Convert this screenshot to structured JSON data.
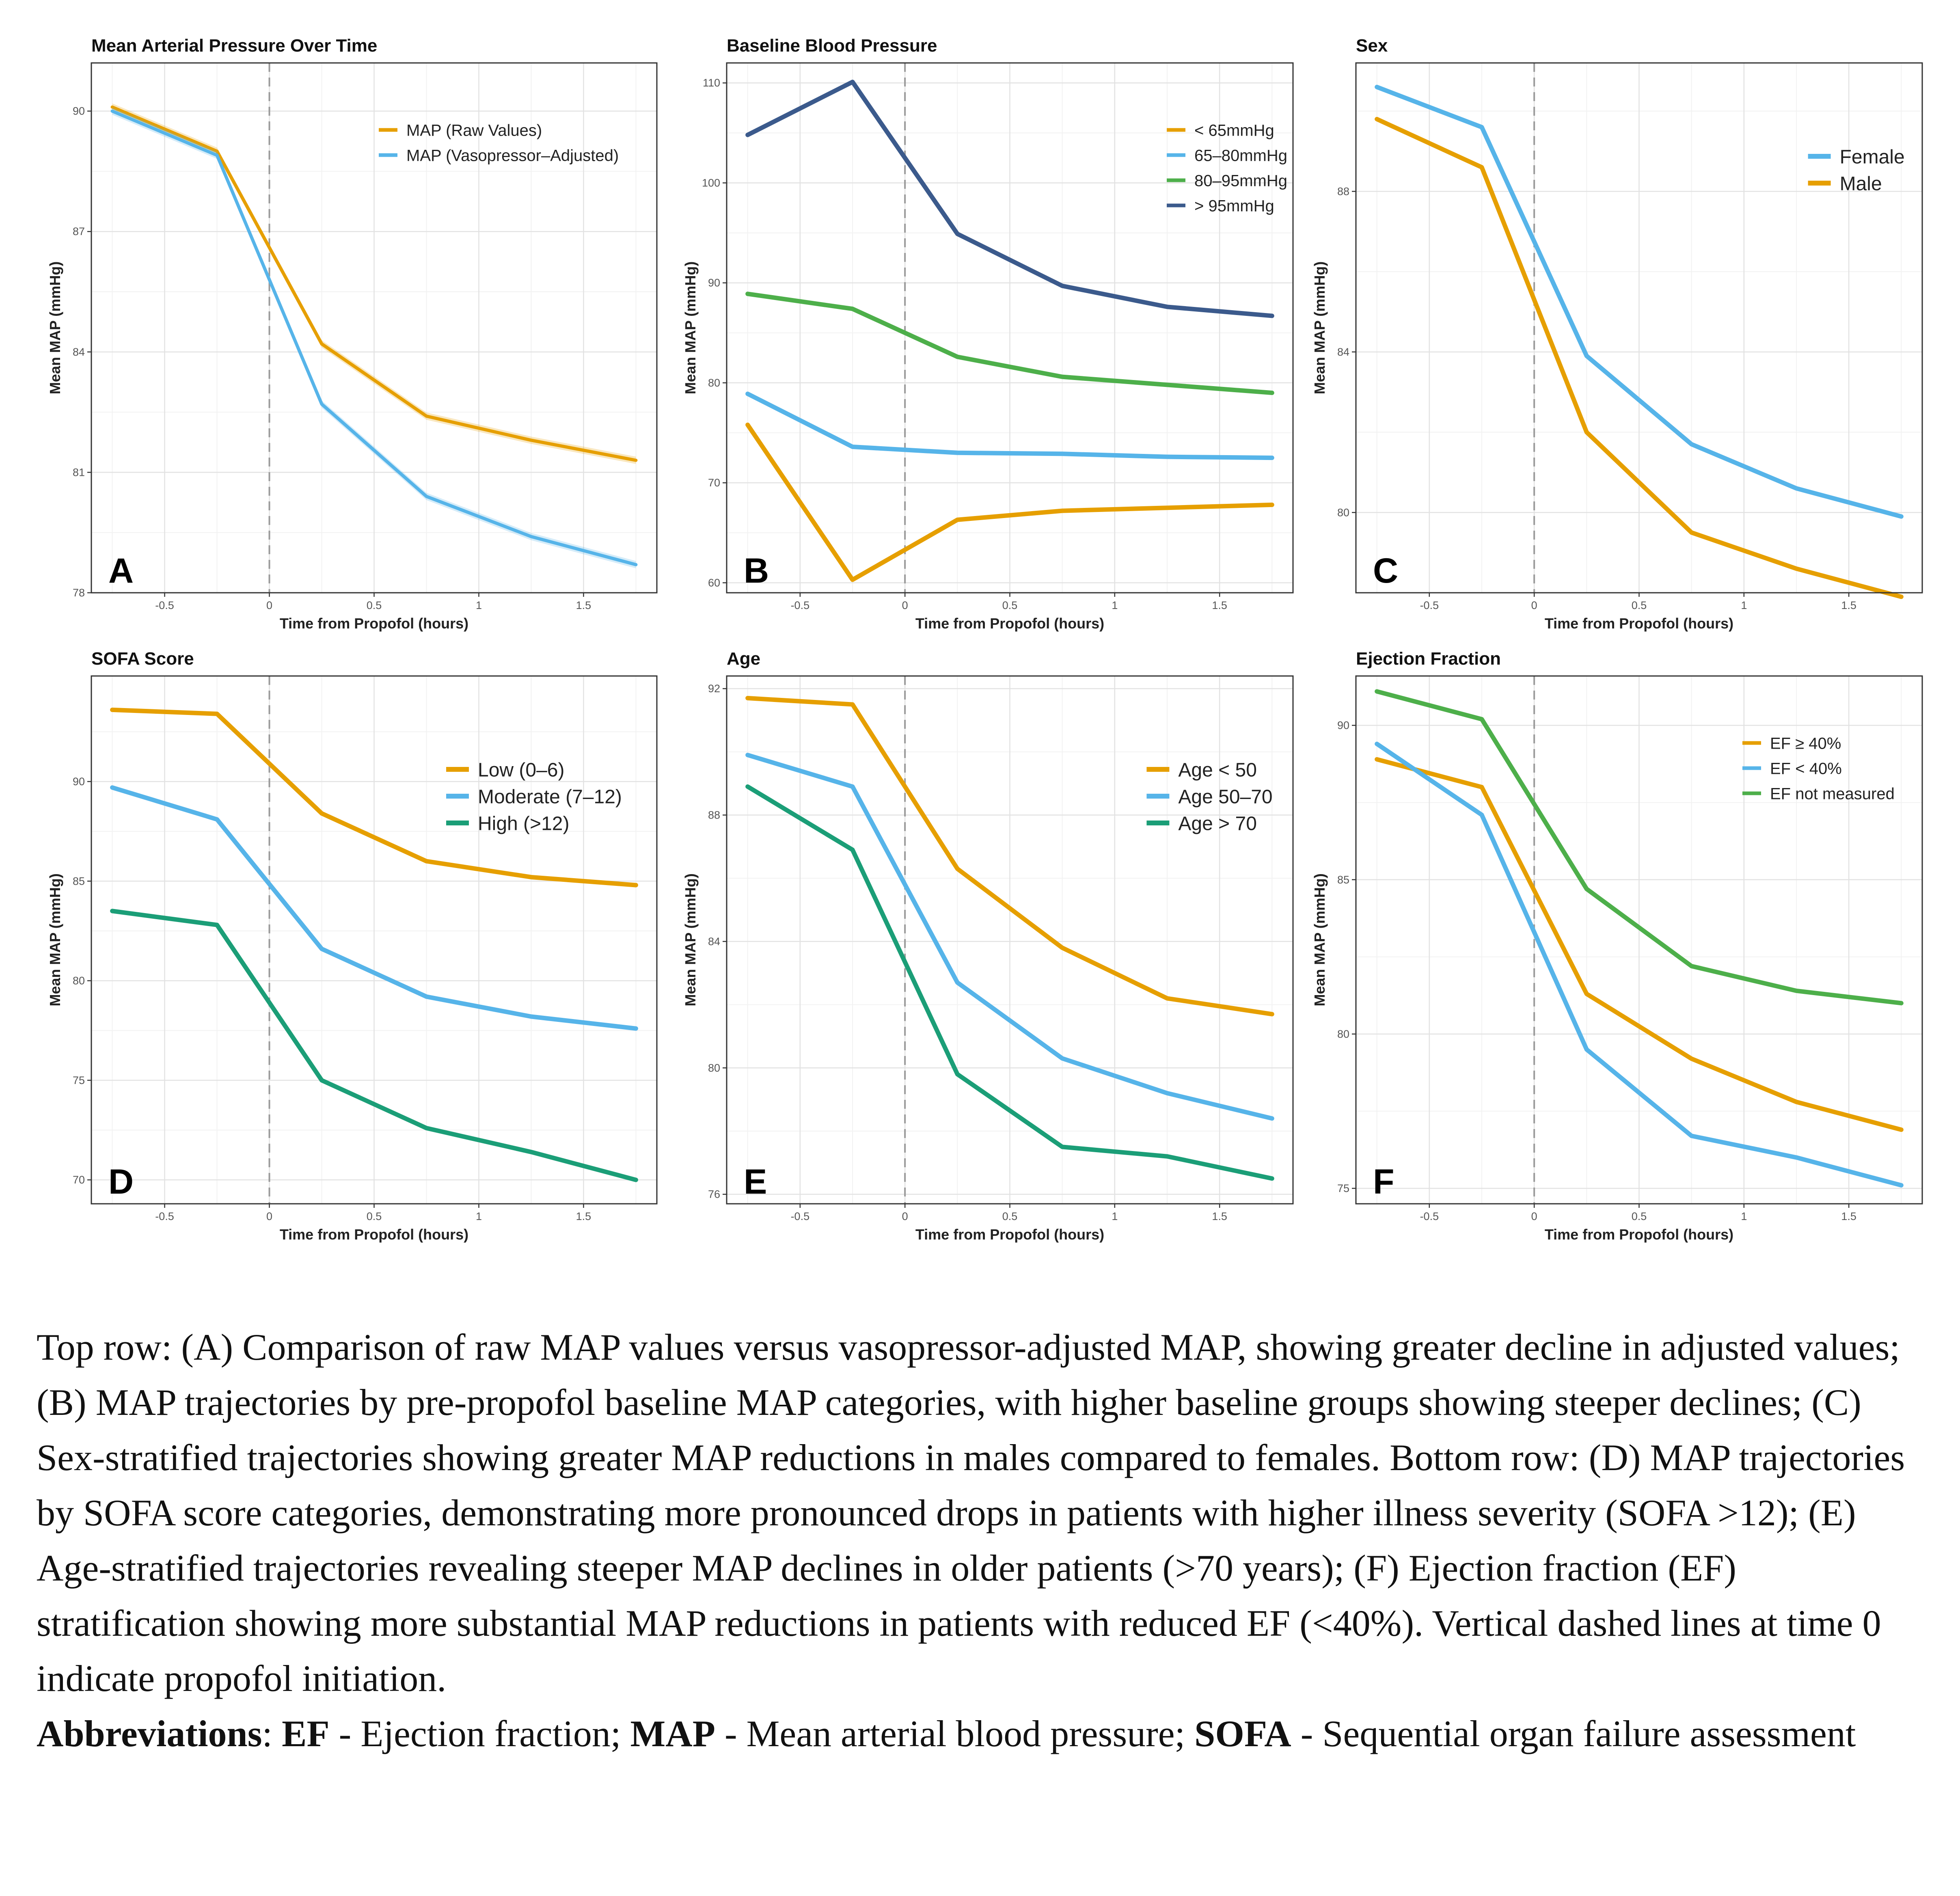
{
  "figure": {
    "x_label": "Time from Propofol (hours)",
    "y_label": "Mean MAP (mmHg)"
  },
  "chart_data": [
    {
      "type": "line",
      "letter": "A",
      "title": "Mean Arterial Pressure Over Time",
      "xlabel": "Time from Propofol (hours)",
      "ylabel": "Mean MAP (mmHg)",
      "xlim": [
        -0.85,
        1.85
      ],
      "ylim": [
        78,
        91.2
      ],
      "xticks": [
        -0.5,
        0,
        0.5,
        1,
        1.5
      ],
      "xtick_labels": [
        "-0.5",
        "0",
        "0.5",
        "1",
        "1.5"
      ],
      "yticks": [
        78,
        81,
        84,
        87,
        90
      ],
      "ytick_labels": [
        "78",
        "81",
        "84",
        "87",
        "90"
      ],
      "vline": 0,
      "legend_position": "top-right",
      "legend_size": "small",
      "bands": true,
      "x": [
        -0.75,
        -0.25,
        0.25,
        0.75,
        1.25,
        1.75
      ],
      "series": [
        {
          "name": "MAP (Raw Values)",
          "color": "#E69F00",
          "values": [
            90.1,
            89.0,
            84.2,
            82.4,
            81.8,
            81.3
          ]
        },
        {
          "name": "MAP (Vasopressor–Adjusted)",
          "color": "#56B4E9",
          "values": [
            90.0,
            88.9,
            82.7,
            80.4,
            79.4,
            78.7
          ]
        }
      ]
    },
    {
      "type": "line",
      "letter": "B",
      "title": "Baseline Blood Pressure",
      "xlabel": "Time from Propofol (hours)",
      "ylabel": "Mean MAP (mmHg)",
      "xlim": [
        -0.85,
        1.85
      ],
      "ylim": [
        59,
        112
      ],
      "xticks": [
        -0.5,
        0,
        0.5,
        1,
        1.5
      ],
      "xtick_labels": [
        "-0.5",
        "0",
        "0.5",
        "1",
        "1.5"
      ],
      "yticks": [
        60,
        70,
        80,
        90,
        100,
        110
      ],
      "ytick_labels": [
        "60",
        "70",
        "80",
        "90",
        "100",
        "110"
      ],
      "vline": 0,
      "legend_position": "top-right",
      "legend_size": "small",
      "x": [
        -0.75,
        -0.25,
        0.25,
        0.75,
        1.25,
        1.75
      ],
      "series": [
        {
          "name": "< 65mmHg",
          "color": "#E69F00",
          "values": [
            75.8,
            60.3,
            66.3,
            67.2,
            67.5,
            67.8
          ]
        },
        {
          "name": "65–80mmHg",
          "color": "#56B4E9",
          "values": [
            78.9,
            73.6,
            73.0,
            72.9,
            72.6,
            72.5
          ]
        },
        {
          "name": "80–95mmHg",
          "color": "#4DAF4A",
          "values": [
            88.9,
            87.4,
            82.6,
            80.6,
            79.8,
            79.0
          ]
        },
        {
          "name": "> 95mmHg",
          "color": "#3B5A8C",
          "values": [
            104.8,
            110.1,
            94.9,
            89.7,
            87.6,
            86.7
          ]
        }
      ]
    },
    {
      "type": "line",
      "letter": "C",
      "title": "Sex",
      "xlabel": "Time from Propofol (hours)",
      "ylabel": "Mean MAP (mmHg)",
      "xlim": [
        -0.85,
        1.85
      ],
      "ylim": [
        78,
        91.2
      ],
      "xticks": [
        -0.5,
        0,
        0.5,
        1,
        1.5
      ],
      "xtick_labels": [
        "-0.5",
        "0",
        "0.5",
        "1",
        "1.5"
      ],
      "yticks": [
        80,
        84,
        88
      ],
      "ytick_labels": [
        "80",
        "84",
        "88"
      ],
      "vline": 0,
      "legend_position": "top-right",
      "legend_size": "large",
      "x": [
        -0.75,
        -0.25,
        0.25,
        0.75,
        1.25,
        1.75
      ],
      "series": [
        {
          "name": "Female",
          "color": "#56B4E9",
          "values": [
            90.6,
            89.6,
            83.9,
            81.7,
            80.6,
            79.9
          ]
        },
        {
          "name": "Male",
          "color": "#E69F00",
          "values": [
            89.8,
            88.6,
            82.0,
            79.5,
            78.6,
            77.9
          ]
        }
      ]
    },
    {
      "type": "line",
      "letter": "D",
      "title": "SOFA Score",
      "xlabel": "Time from Propofol (hours)",
      "ylabel": "Mean MAP (mmHg)",
      "xlim": [
        -0.85,
        1.85
      ],
      "ylim": [
        68.8,
        95.3
      ],
      "xticks": [
        -0.5,
        0,
        0.5,
        1,
        1.5
      ],
      "xtick_labels": [
        "-0.5",
        "0",
        "0.5",
        "1",
        "1.5"
      ],
      "yticks": [
        70,
        75,
        80,
        85,
        90
      ],
      "ytick_labels": [
        "70",
        "75",
        "80",
        "85",
        "90"
      ],
      "vline": 0,
      "legend_position": "top-right",
      "legend_size": "large",
      "x": [
        -0.75,
        -0.25,
        0.25,
        0.75,
        1.25,
        1.75
      ],
      "series": [
        {
          "name": "Low (0–6)",
          "color": "#E69F00",
          "values": [
            93.6,
            93.4,
            88.4,
            86.0,
            85.2,
            84.8
          ]
        },
        {
          "name": "Moderate (7–12)",
          "color": "#56B4E9",
          "values": [
            89.7,
            88.1,
            81.6,
            79.2,
            78.2,
            77.6
          ]
        },
        {
          "name": "High (>12)",
          "color": "#1B9E77",
          "values": [
            83.5,
            82.8,
            75.0,
            72.6,
            71.4,
            70.0
          ]
        }
      ]
    },
    {
      "type": "line",
      "letter": "E",
      "title": "Age",
      "xlabel": "Time from Propofol (hours)",
      "ylabel": "Mean MAP (mmHg)",
      "xlim": [
        -0.85,
        1.85
      ],
      "ylim": [
        75.7,
        92.4
      ],
      "xticks": [
        -0.5,
        0,
        0.5,
        1,
        1.5
      ],
      "xtick_labels": [
        "-0.5",
        "0",
        "0.5",
        "1",
        "1.5"
      ],
      "yticks": [
        76,
        80,
        84,
        88,
        92
      ],
      "ytick_labels": [
        "76",
        "80",
        "84",
        "88",
        "92"
      ],
      "vline": 0,
      "legend_position": "top-right",
      "legend_size": "large",
      "x": [
        -0.75,
        -0.25,
        0.25,
        0.75,
        1.25,
        1.75
      ],
      "series": [
        {
          "name": "Age < 50",
          "color": "#E69F00",
          "values": [
            91.7,
            91.5,
            86.3,
            83.8,
            82.2,
            81.7
          ]
        },
        {
          "name": "Age 50–70",
          "color": "#56B4E9",
          "values": [
            89.9,
            88.9,
            82.7,
            80.3,
            79.2,
            78.4
          ]
        },
        {
          "name": "Age > 70",
          "color": "#1B9E77",
          "values": [
            88.9,
            86.9,
            79.8,
            77.5,
            77.2,
            76.5
          ]
        }
      ]
    },
    {
      "type": "line",
      "letter": "F",
      "title": "Ejection Fraction",
      "xlabel": "Time from Propofol (hours)",
      "ylabel": "Mean MAP (mmHg)",
      "xlim": [
        -0.85,
        1.85
      ],
      "ylim": [
        74.5,
        91.6
      ],
      "xticks": [
        -0.5,
        0,
        0.5,
        1,
        1.5
      ],
      "xtick_labels": [
        "-0.5",
        "0",
        "0.5",
        "1",
        "1.5"
      ],
      "yticks": [
        75,
        80,
        85,
        90
      ],
      "ytick_labels": [
        "75",
        "80",
        "85",
        "90"
      ],
      "vline": 0,
      "legend_position": "top-right",
      "legend_size": "small",
      "x": [
        -0.75,
        -0.25,
        0.25,
        0.75,
        1.25,
        1.75
      ],
      "series": [
        {
          "name": "EF ≥ 40%",
          "color": "#E69F00",
          "values": [
            88.9,
            88.0,
            81.3,
            79.2,
            77.8,
            76.9
          ]
        },
        {
          "name": "EF < 40%",
          "color": "#56B4E9",
          "values": [
            89.4,
            87.1,
            79.5,
            76.7,
            76.0,
            75.1
          ]
        },
        {
          "name": "EF not measured",
          "color": "#4DAF4A",
          "values": [
            91.1,
            90.2,
            84.7,
            82.2,
            81.4,
            81.0
          ]
        }
      ]
    }
  ],
  "caption": {
    "paragraph": "Top row: (A) Comparison of raw MAP values versus vasopressor-adjusted MAP, showing greater decline in adjusted values; (B) MAP trajectories by pre-propofol baseline MAP categories, with higher baseline groups showing steeper declines; (C) Sex-stratified trajectories showing greater MAP reductions in males compared to females. Bottom row: (D) MAP trajectories by SOFA score categories, demonstrating more pronounced drops in patients with higher illness severity (SOFA >12); (E) Age-stratified trajectories revealing steeper MAP declines in older patients (>70 years); (F) Ejection fraction (EF) stratification showing more substantial MAP reductions in patients with reduced EF (<40%). Vertical dashed lines at time 0 indicate propofol initiation.",
    "abbrev_label": "Abbreviations",
    "abbrev_sep": ": ",
    "abbr_ef": "EF",
    "abbr_ef_def": " - Ejection fraction; ",
    "abbr_map": "MAP",
    "abbr_map_def": " - Mean arterial blood pressure; ",
    "abbr_sofa": "SOFA",
    "abbr_sofa_def": " - Sequential organ failure assessment"
  }
}
